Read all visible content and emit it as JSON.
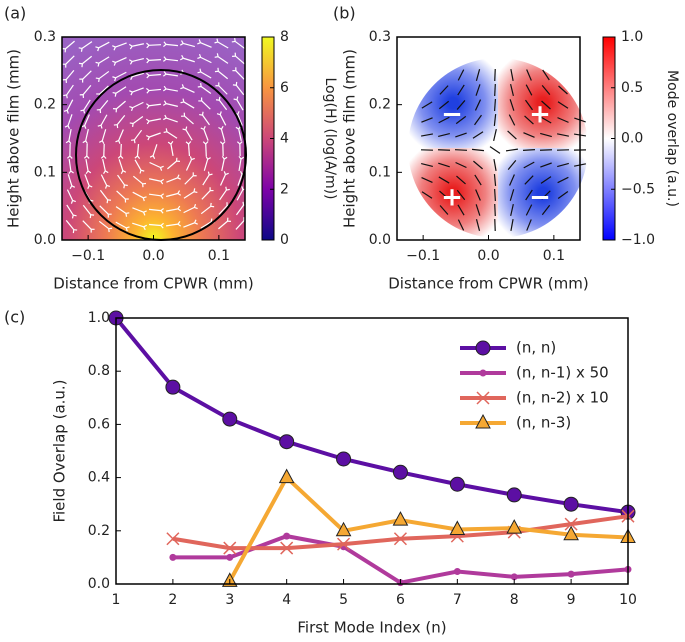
{
  "chart_data": [
    {
      "type": "heatmap",
      "label": "(a)",
      "xlabel": "Distance from CPWR (mm)",
      "ylabel": "Height above film (mm)",
      "xlim": [
        -0.14,
        0.14
      ],
      "ylim": [
        0,
        0.3
      ],
      "xticks": [
        {
          "value": -0.1,
          "label": "−0.1"
        },
        {
          "value": 0,
          "label": "0.0"
        },
        {
          "value": 0.1,
          "label": "0.1"
        }
      ],
      "yticks": [
        {
          "value": 0,
          "label": "0.0"
        },
        {
          "value": 0.1,
          "label": "0.1"
        },
        {
          "value": 0.2,
          "label": "0.2"
        },
        {
          "value": 0.3,
          "label": "0.3"
        }
      ],
      "colormap": "plasma",
      "clim": [
        0,
        8
      ],
      "cticks": [
        0,
        2,
        4,
        6,
        8
      ],
      "colorbar_label": "Log(H)  (log(A/m))"
    },
    {
      "type": "heatmap",
      "label": "(b)",
      "xlabel": "Distance from CPWR (mm)",
      "ylabel": "Height above film (mm)",
      "xlim": [
        -0.14,
        0.14
      ],
      "ylim": [
        0,
        0.3
      ],
      "xticks": [
        {
          "value": -0.1,
          "label": "−0.1"
        },
        {
          "value": 0,
          "label": "0.0"
        },
        {
          "value": 0.1,
          "label": "0.1"
        }
      ],
      "yticks": [
        {
          "value": 0,
          "label": "0.0"
        },
        {
          "value": 0.1,
          "label": "0.1"
        },
        {
          "value": 0.2,
          "label": "0.2"
        },
        {
          "value": 0.3,
          "label": "0.3"
        }
      ],
      "colormap": "bwr",
      "clim": [
        -1,
        1
      ],
      "cticks": [
        {
          "value": -1,
          "label": "−1.0"
        },
        {
          "value": -0.5,
          "label": "−0.5"
        },
        {
          "value": 0,
          "label": "0.0"
        },
        {
          "value": 0.5,
          "label": "0.5"
        },
        {
          "value": 1,
          "label": "1.0"
        }
      ],
      "colorbar_label": "Mode overlap (a.u.)",
      "annotations": [
        "−",
        "+",
        "+",
        "−"
      ]
    },
    {
      "type": "line",
      "label": "(c)",
      "xlabel": "First Mode Index (n)",
      "ylabel": "Field Overlap (a.u.)",
      "xlim": [
        1,
        10
      ],
      "ylim": [
        0,
        1
      ],
      "xticks": [
        1,
        2,
        3,
        4,
        5,
        6,
        7,
        8,
        9,
        10
      ],
      "yticks": [
        {
          "value": 0,
          "label": "0.0"
        },
        {
          "value": 0.2,
          "label": "0.2"
        },
        {
          "value": 0.4,
          "label": "0.4"
        },
        {
          "value": 0.6,
          "label": "0.6"
        },
        {
          "value": 0.8,
          "label": "0.8"
        },
        {
          "value": 1,
          "label": "1.0"
        }
      ],
      "legend": "upper right",
      "series": [
        {
          "name": "(n, n)",
          "color": "#5c0fa3",
          "marker": "circle",
          "x": [
            1,
            2,
            3,
            4,
            5,
            6,
            7,
            8,
            9,
            10
          ],
          "values": [
            1.0,
            0.74,
            0.62,
            0.535,
            0.47,
            0.42,
            0.375,
            0.335,
            0.3,
            0.27
          ]
        },
        {
          "name": "(n, n-1) x 50",
          "color": "#b03a9c",
          "marker": "dot",
          "x": [
            2,
            3,
            4,
            5,
            6,
            7,
            8,
            9,
            10
          ],
          "values": [
            0.1,
            0.1,
            0.18,
            0.14,
            0.005,
            0.047,
            0.027,
            0.037,
            0.055
          ]
        },
        {
          "name": "(n, n-2) x 10",
          "color": "#e0665c",
          "marker": "x",
          "x": [
            2,
            3,
            4,
            5,
            6,
            7,
            8,
            9,
            10
          ],
          "values": [
            0.17,
            0.135,
            0.135,
            0.15,
            0.17,
            0.18,
            0.195,
            0.225,
            0.255
          ]
        },
        {
          "name": "(n, n-3)",
          "color": "#f5a833",
          "marker": "triangle",
          "x": [
            3,
            4,
            5,
            6,
            7,
            8,
            9,
            10
          ],
          "values": [
            0.01,
            0.4,
            0.2,
            0.24,
            0.205,
            0.21,
            0.185,
            0.175
          ]
        }
      ]
    }
  ]
}
